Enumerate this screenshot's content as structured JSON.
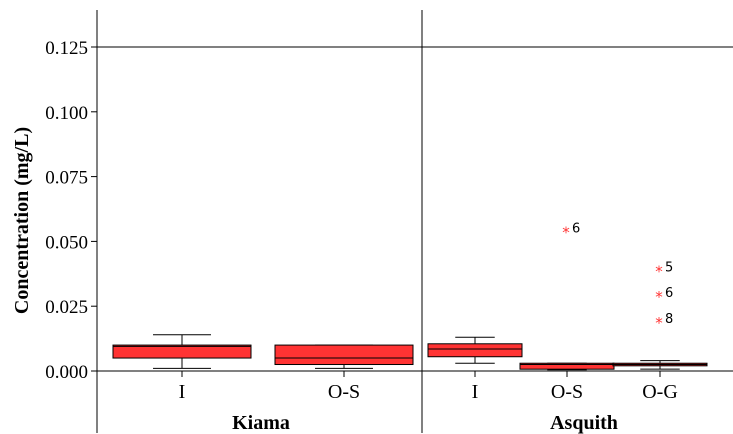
{
  "chart_data": {
    "type": "box",
    "ylabel": "Concentration (mg/L)",
    "ylim": [
      0,
      0.125
    ],
    "yticks": [
      "0.000",
      "0.025",
      "0.050",
      "0.075",
      "0.100",
      "0.125"
    ],
    "colors": {
      "box_fill": "#ff3333",
      "outlier": "#ff3333",
      "line": "#000000"
    },
    "groups": [
      {
        "name": "Kiama",
        "boxes": [
          {
            "category": "I",
            "whisker_low": 0.001,
            "q1": 0.005,
            "median": 0.0095,
            "q3": 0.01,
            "whisker_high": 0.014,
            "outliers": []
          },
          {
            "category": "O-S",
            "whisker_low": 0.001,
            "q1": 0.0025,
            "median": 0.005,
            "q3": 0.01,
            "whisker_high": 0.01,
            "outliers": []
          }
        ]
      },
      {
        "name": "Asquith",
        "boxes": [
          {
            "category": "I",
            "whisker_low": 0.003,
            "q1": 0.0055,
            "median": 0.0085,
            "q3": 0.0105,
            "whisker_high": 0.013,
            "outliers": []
          },
          {
            "category": "O-S",
            "whisker_low": 0.0005,
            "q1": 0.0007,
            "median": 0.0025,
            "q3": 0.003,
            "whisker_high": 0.003,
            "outliers": [
              {
                "value": 0.055,
                "label": "6"
              }
            ]
          },
          {
            "category": "O-G",
            "whisker_low": 0.0007,
            "q1": 0.002,
            "median": 0.0025,
            "q3": 0.003,
            "whisker_high": 0.004,
            "outliers": [
              {
                "value": 0.04,
                "label": "5"
              },
              {
                "value": 0.03,
                "label": "6"
              },
              {
                "value": 0.02,
                "label": "8"
              }
            ]
          }
        ]
      }
    ]
  }
}
